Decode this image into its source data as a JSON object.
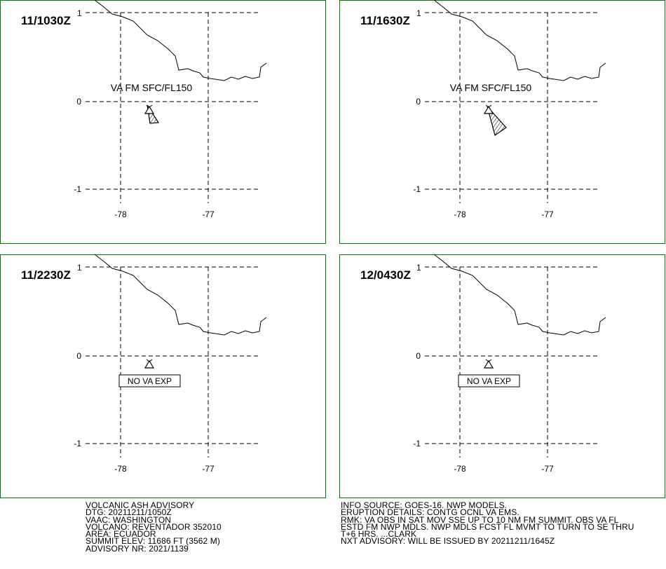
{
  "panels": [
    {
      "time": "11/1030Z",
      "sup": "1",
      "label": "VA FM SFC/FL150"
    },
    {
      "time": "11/1630Z",
      "sup": "1",
      "label": "VA FM SFC/FL150"
    },
    {
      "time": "11/2230Z",
      "sup": "1",
      "label": "NO VA EXP"
    },
    {
      "time": "12/0430Z",
      "sup": "1",
      "label": "NO VA EXP"
    }
  ],
  "grid": {
    "lat_labels": [
      "0",
      "-1"
    ],
    "lon_labels": [
      "-78",
      "-77"
    ]
  },
  "advisory_left": [
    "VOLCANIC ASH ADVISORY",
    "DTG: 20211211/1050Z",
    "VAAC: WASHINGTON",
    "VOLCANO: REVENTADOR 352010",
    "AREA: ECUADOR",
    "SUMMIT ELEV: 11686 FT (3562 M)",
    "ADVISORY NR: 2021/1139"
  ],
  "advisory_right": [
    "INFO SOURCE: GOES-16. NWP MODELS.",
    "ERUPTION DETAILS: CONTG OCNL VA EMS.",
    "RMK: VA OBS IN SAT MOV SSE UP TO 10 NM FM SUMMIT. OBS VA FL",
    "ESTD FM NWP MDLS. NWP MDLS FCST FL MVMT TO TURN TO SE THRU",
    "T+6 HRS. ...CLARK",
    "NXT ADVISORY: WILL BE ISSUED BY 20211211/1645Z"
  ]
}
